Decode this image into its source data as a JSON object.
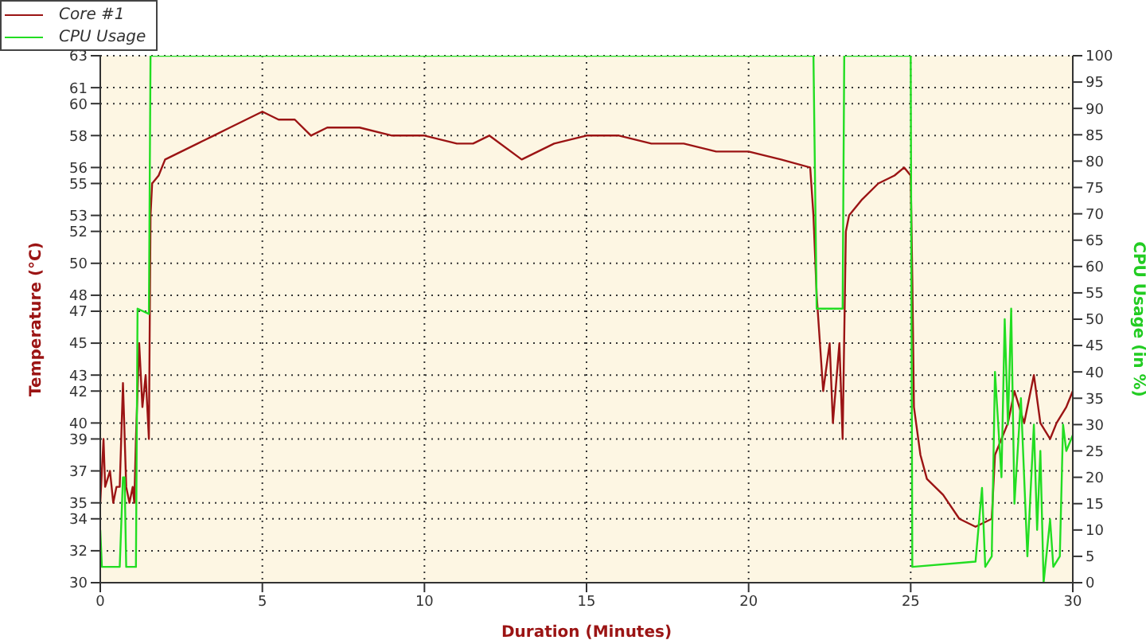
{
  "chart_data": {
    "type": "line",
    "xlabel": "Duration (Minutes)",
    "ylabel": "Temperature (°C)",
    "y2label": "CPU Usage (in %)",
    "xlim": [
      0,
      30
    ],
    "xticks": [
      0,
      5,
      10,
      15,
      20,
      25,
      30
    ],
    "ylim": [
      30,
      63
    ],
    "yticks": [
      30,
      32,
      34,
      35,
      37,
      39,
      40,
      42,
      43,
      45,
      47,
      48,
      50,
      52,
      53,
      55,
      56,
      58,
      60,
      61,
      63
    ],
    "y2lim": [
      0,
      100
    ],
    "y2ticks": [
      0,
      5,
      10,
      15,
      20,
      25,
      30,
      35,
      40,
      45,
      50,
      55,
      60,
      65,
      70,
      75,
      80,
      85,
      90,
      95,
      100
    ],
    "grid": true,
    "legend": "top left",
    "marker": "none",
    "line_style": "solid",
    "series": [
      {
        "name": "Core #1",
        "color": "#9b1414",
        "x": [
          0,
          0.1,
          0.15,
          0.3,
          0.4,
          0.5,
          0.6,
          0.7,
          0.8,
          0.9,
          1,
          1.05,
          1.1,
          1.2,
          1.3,
          1.4,
          1.5,
          1.55,
          1.6,
          1.8,
          2,
          2.5,
          3,
          3.5,
          4,
          4.5,
          5,
          5.5,
          6,
          6.5,
          7,
          8,
          9,
          10,
          11,
          11.5,
          12,
          13,
          13.5,
          14,
          15,
          16,
          17,
          18,
          19,
          20,
          21,
          21.9,
          22,
          22.1,
          22.3,
          22.5,
          22.6,
          22.8,
          22.9,
          23,
          23.1,
          23.5,
          24,
          24.5,
          24.8,
          25,
          25.05,
          25.1,
          25.3,
          25.5,
          26,
          26.5,
          27,
          27.5,
          27.6,
          27.8,
          28,
          28.2,
          28.5,
          28.8,
          29,
          29.3,
          29.5,
          29.8,
          30
        ],
        "values": [
          35,
          39,
          36,
          37,
          35,
          36,
          36,
          42.5,
          36,
          35,
          36,
          35,
          39,
          45,
          41,
          43,
          39,
          53,
          55,
          55.5,
          56.5,
          57,
          57.5,
          58,
          58.5,
          59,
          59.5,
          59,
          59,
          58,
          58.5,
          58.5,
          58,
          58,
          57.5,
          57.5,
          58,
          56.5,
          57,
          57.5,
          58,
          58,
          57.5,
          57.5,
          57,
          57,
          56.5,
          56,
          53,
          48,
          42,
          45,
          40,
          45,
          39,
          52,
          53,
          54,
          55,
          55.5,
          56,
          55.5,
          49,
          41,
          38,
          36.5,
          35.5,
          34,
          33.5,
          34,
          38,
          39,
          40,
          42,
          40,
          43,
          40,
          39,
          40,
          41,
          42
        ]
      },
      {
        "name": "CPU Usage",
        "color": "#22dd22",
        "axis": "y2",
        "x": [
          0,
          0.05,
          0.5,
          0.6,
          0.7,
          0.75,
          0.8,
          1.1,
          1.15,
          1.5,
          1.55,
          22,
          22.1,
          22.9,
          22.95,
          25,
          25.05,
          27,
          27.2,
          27.3,
          27.5,
          27.6,
          27.8,
          27.9,
          28,
          28.1,
          28.2,
          28.4,
          28.6,
          28.8,
          28.9,
          29,
          29.1,
          29.3,
          29.4,
          29.6,
          29.7,
          29.8,
          30
        ],
        "values": [
          10,
          3,
          3,
          3,
          20,
          20,
          3,
          3,
          52,
          51,
          100,
          100,
          52,
          52,
          100,
          100,
          3,
          4,
          18,
          3,
          5,
          40,
          20,
          50,
          30,
          52,
          15,
          35,
          5,
          30,
          10,
          25,
          0,
          12,
          3,
          5,
          30,
          25,
          28
        ]
      }
    ]
  }
}
